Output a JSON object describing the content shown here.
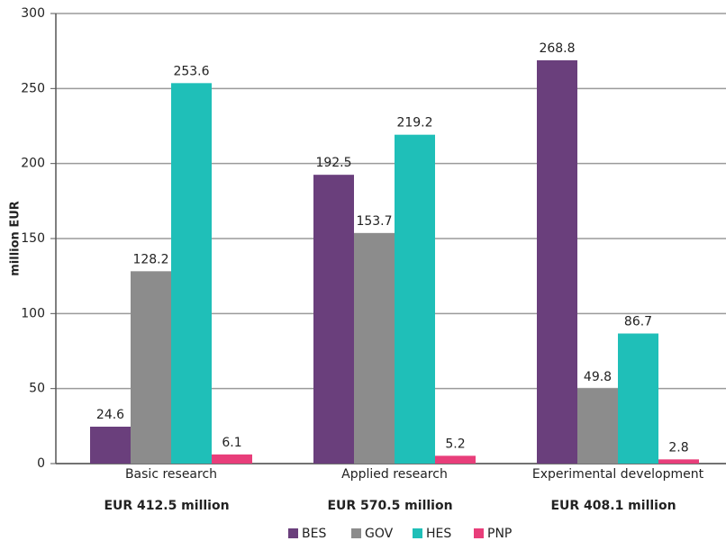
{
  "chart_data": {
    "type": "bar",
    "y_label": "million EUR",
    "categories": [
      "Basic research",
      "Applied research",
      "Experimental development"
    ],
    "category_totals": [
      "EUR  412.5 million",
      "EUR  570.5 million",
      "EUR  408.1 million"
    ],
    "series": [
      {
        "name": "BES",
        "color": "#6a3f7c",
        "values": [
          24.6,
          192.5,
          268.8
        ]
      },
      {
        "name": "GOV",
        "color": "#8c8c8c",
        "values": [
          128.2,
          153.7,
          49.8
        ]
      },
      {
        "name": "HES",
        "color": "#1fbfb8",
        "values": [
          253.6,
          219.2,
          86.7
        ]
      },
      {
        "name": "PNP",
        "color": "#e83e7a",
        "values": [
          6.1,
          5.2,
          2.8
        ]
      }
    ],
    "ylim": [
      0,
      300
    ],
    "yticks": [
      0,
      50,
      100,
      150,
      200,
      250,
      300
    ],
    "grid": true
  }
}
